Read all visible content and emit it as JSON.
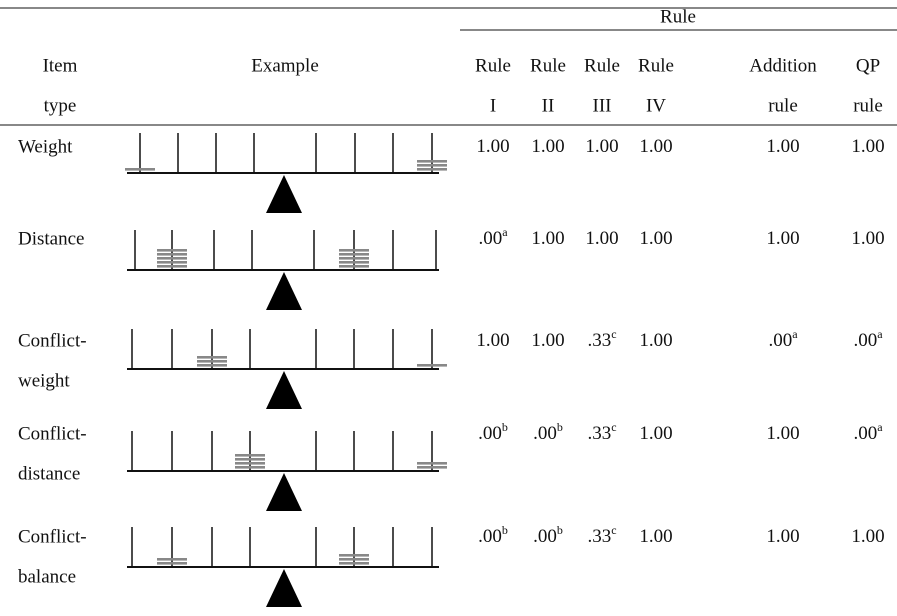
{
  "header": {
    "group_label": "Rule",
    "columns": [
      {
        "lines": [
          "Item",
          "type"
        ]
      },
      {
        "lines": [
          "Example"
        ]
      },
      {
        "lines": [
          "Rule",
          "I"
        ]
      },
      {
        "lines": [
          "Rule",
          "II"
        ]
      },
      {
        "lines": [
          "Rule",
          "III"
        ]
      },
      {
        "lines": [
          "Rule",
          "IV"
        ]
      },
      {
        "lines": [
          "Addition",
          "rule"
        ]
      },
      {
        "lines": [
          "QP",
          "rule"
        ]
      }
    ]
  },
  "rows": [
    {
      "item_type": [
        "Weight"
      ],
      "values": [
        {
          "value": "1.00"
        },
        {
          "value": "1.00"
        },
        {
          "value": "1.00"
        },
        {
          "value": "1.00"
        },
        {
          "value": "1.00"
        },
        {
          "value": "1.00"
        }
      ]
    },
    {
      "item_type": [
        "Distance"
      ],
      "values": [
        {
          "value": ".00",
          "note": "a"
        },
        {
          "value": "1.00"
        },
        {
          "value": "1.00"
        },
        {
          "value": "1.00"
        },
        {
          "value": "1.00"
        },
        {
          "value": "1.00"
        }
      ]
    },
    {
      "item_type": [
        "Conflict-",
        "weight"
      ],
      "values": [
        {
          "value": "1.00"
        },
        {
          "value": "1.00"
        },
        {
          "value": ".33",
          "note": "c"
        },
        {
          "value": "1.00"
        },
        {
          "value": ".00",
          "note": "a"
        },
        {
          "value": ".00",
          "note": "a"
        }
      ]
    },
    {
      "item_type": [
        "Conflict-",
        "distance"
      ],
      "values": [
        {
          "value": ".00",
          "note": "b"
        },
        {
          "value": ".00",
          "note": "b"
        },
        {
          "value": ".33",
          "note": "c"
        },
        {
          "value": "1.00"
        },
        {
          "value": "1.00"
        },
        {
          "value": ".00",
          "note": "a"
        }
      ]
    },
    {
      "item_type": [
        "Conflict-",
        "balance"
      ],
      "values": [
        {
          "value": ".00",
          "note": "b"
        },
        {
          "value": ".00",
          "note": "b"
        },
        {
          "value": ".33",
          "note": "c"
        },
        {
          "value": "1.00"
        },
        {
          "value": "1.00"
        },
        {
          "value": "1.00"
        }
      ]
    }
  ]
}
